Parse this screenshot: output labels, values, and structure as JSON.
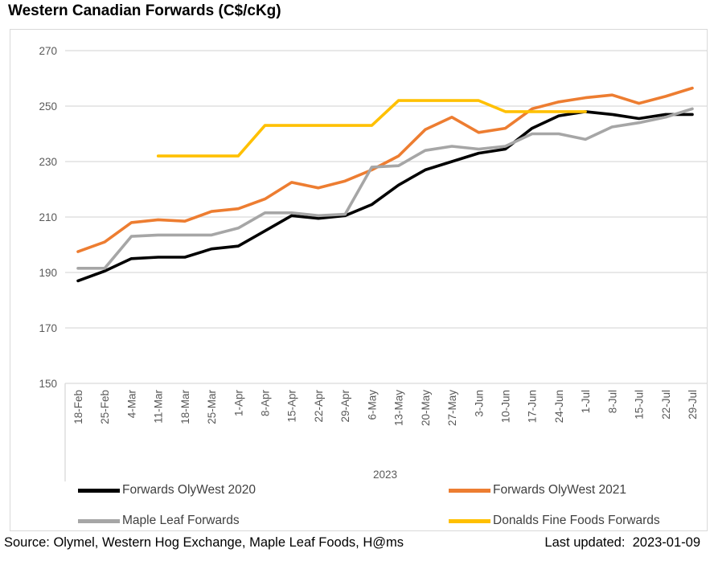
{
  "title": "Western Canadian Forwards (C$/cKg)",
  "footer": {
    "source": "Source: Olymel, Western Hog Exchange, Maple Leaf Foods, H@ms",
    "last_updated": "Last updated:  2023-01-09"
  },
  "chart_data": {
    "type": "line",
    "title": "Western Canadian Forwards (C$/cKg)",
    "x_axis_group_label": "2023",
    "categories": [
      "18-Feb",
      "25-Feb",
      "4-Mar",
      "11-Mar",
      "18-Mar",
      "25-Mar",
      "1-Apr",
      "8-Apr",
      "15-Apr",
      "22-Apr",
      "29-Apr",
      "6-May",
      "13-May",
      "20-May",
      "27-May",
      "3-Jun",
      "10-Jun",
      "17-Jun",
      "24-Jun",
      "1-Jul",
      "8-Jul",
      "15-Jul",
      "22-Jul",
      "29-Jul"
    ],
    "ylim": [
      150,
      270
    ],
    "ytick_step": 20,
    "yticks": [
      150,
      170,
      190,
      210,
      230,
      250,
      270
    ],
    "grid": true,
    "legend_position": "bottom",
    "colors": {
      "grid": "#d9d9d9",
      "axis_text": "#595959",
      "legend_text": "#404040"
    },
    "series": [
      {
        "name": "Forwards OlyWest 2020",
        "color": "#000000",
        "values": [
          187,
          190.5,
          195,
          195.5,
          195.5,
          198.5,
          199.5,
          205,
          210.5,
          209.5,
          210.5,
          214.5,
          221.5,
          227,
          230,
          233,
          234.5,
          242,
          246.5,
          248,
          247,
          245.5,
          247,
          247
        ]
      },
      {
        "name": "Forwards OlyWest 2021",
        "color": "#ed7d31",
        "values": [
          197.5,
          201,
          208,
          209,
          208.5,
          212,
          213,
          216.5,
          222.5,
          220.5,
          223,
          227,
          232,
          241.5,
          246,
          240.5,
          242,
          249,
          251.5,
          253,
          254,
          251,
          253.5,
          256.5
        ]
      },
      {
        "name": "Maple Leaf Forwards",
        "color": "#a6a6a6",
        "values": [
          191.5,
          191.5,
          203,
          203.5,
          203.5,
          203.5,
          206,
          211.5,
          211.5,
          210.5,
          211,
          228,
          228.5,
          234,
          235.5,
          234.5,
          235.5,
          240,
          240,
          238,
          242.5,
          244,
          246,
          249
        ]
      },
      {
        "name": "Donalds Fine Foods Forwards",
        "color": "#ffc000",
        "values": [
          null,
          null,
          null,
          232,
          232,
          232,
          232,
          243,
          243,
          243,
          243,
          243,
          252,
          252,
          252,
          252,
          248,
          248,
          248,
          248,
          null,
          null,
          null,
          null
        ]
      }
    ]
  }
}
